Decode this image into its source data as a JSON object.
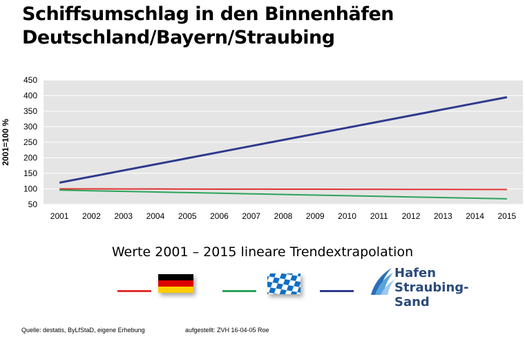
{
  "header": {
    "title_line1": "Schiffsumschlag in den Binnenhäfen",
    "title_line2": "Deutschland/Bayern/Straubing"
  },
  "chart_data": {
    "type": "line",
    "title": "Schiffsumschlag in den Binnenhäfen Deutschland/Bayern/Straubing",
    "xlabel": "",
    "ylabel": "2001=100 %",
    "ylim": [
      50,
      450
    ],
    "yticks": [
      50,
      100,
      150,
      200,
      250,
      300,
      350,
      400,
      450
    ],
    "grid": true,
    "categories": [
      "2001",
      "2002",
      "2003",
      "2004",
      "2005",
      "2006",
      "2007",
      "2008",
      "2009",
      "2010",
      "2011",
      "2012",
      "2013",
      "2014",
      "2015"
    ],
    "series": [
      {
        "name": "Deutschland",
        "color": "#e03030",
        "values": [
          100,
          99.9,
          99.7,
          99.6,
          99.4,
          99.3,
          99.1,
          99.0,
          98.9,
          98.7,
          98.6,
          98.4,
          98.3,
          98.1,
          98.0
        ]
      },
      {
        "name": "Bayern",
        "color": "#2aa35a",
        "values": [
          96,
          94,
          92,
          90,
          88,
          86,
          84,
          82,
          80,
          78,
          76,
          74,
          72,
          70,
          68
        ]
      },
      {
        "name": "Hafen Straubing-Sand",
        "color": "#2e3a8c",
        "values": [
          120,
          139.6,
          159.3,
          178.9,
          198.6,
          218.2,
          237.9,
          257.5,
          277.1,
          296.8,
          316.4,
          336.1,
          355.7,
          375.4,
          395
        ]
      }
    ]
  },
  "subtitle": "Werte 2001 – 2015 lineare Trendextrapolation",
  "legend": {
    "logo_line1": "Hafen",
    "logo_line2": "Straubing-Sand",
    "flag_colors": [
      "#000000",
      "#dd0000",
      "#ffce00"
    ],
    "bavaria_colors": [
      "#0f6fc6",
      "#ffffff"
    ]
  },
  "footer": {
    "source": "Quelle: destatis, ByLfStaD, eigene Erhebung",
    "created": "aufgestellt: ZVH 16-04-05  Roe"
  }
}
